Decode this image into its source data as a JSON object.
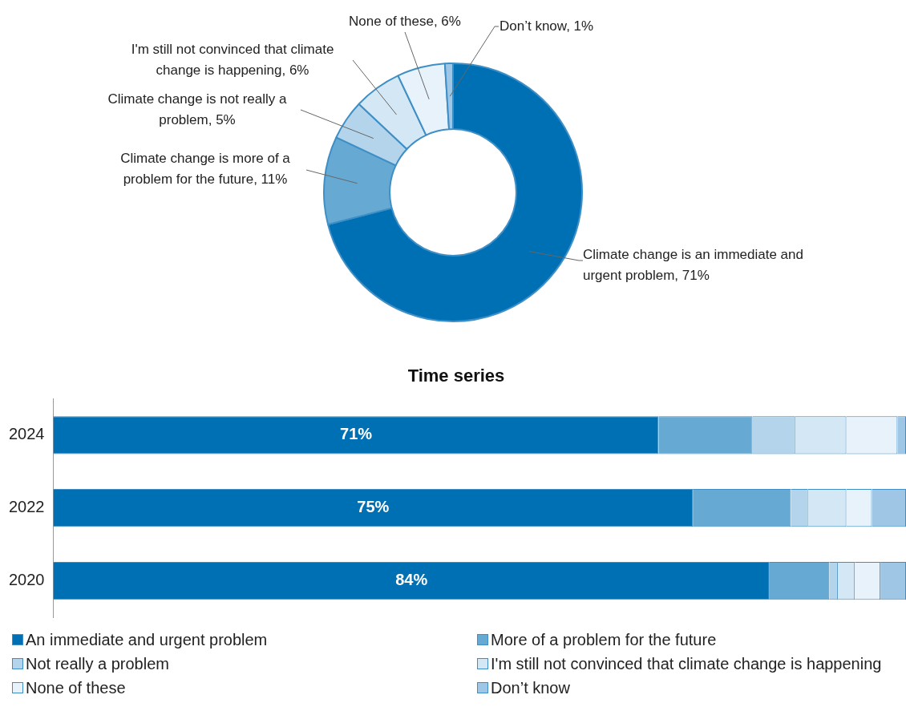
{
  "chart_data": [
    {
      "type": "donut",
      "categories": [
        "Climate change is an immediate and urgent problem",
        "Climate change is more of a problem for the future",
        "Climate change is not really a problem",
        "I'm still not convinced that climate change is happening",
        "None of these",
        "Don’t know"
      ],
      "values": [
        71,
        11,
        5,
        6,
        6,
        1
      ],
      "value_labels": [
        "71%",
        "11%",
        "5%",
        "6%",
        "6%",
        "1%"
      ],
      "colors": [
        "#0070b5",
        "#66aad4",
        "#b3d4ea",
        "#d4e7f5",
        "#e8f2fa",
        "#9fc7e5"
      ]
    },
    {
      "type": "bar",
      "title": "Time series",
      "orientation": "horizontal",
      "stacked": true,
      "legend": "bottom",
      "categories": [
        "2024",
        "2022",
        "2020"
      ],
      "xlim": [
        0,
        100
      ],
      "series": [
        {
          "name": "An immediate and urgent problem",
          "color": "#0070b5",
          "values": [
            71,
            75,
            84
          ],
          "value_labels": [
            "71%",
            "75%",
            "84%"
          ]
        },
        {
          "name": "More of a problem for the future",
          "color": "#66aad4",
          "values": [
            11,
            11.5,
            7
          ]
        },
        {
          "name": "Not really a problem",
          "color": "#b3d4ea",
          "values": [
            5,
            2,
            1
          ]
        },
        {
          "name": "I'm still not convinced that climate change is happening",
          "color": "#d4e7f5",
          "values": [
            6,
            4.5,
            2
          ]
        },
        {
          "name": "None of these",
          "color": "#e8f2fa",
          "values": [
            6,
            3,
            3
          ]
        },
        {
          "name": "Don’t know",
          "color": "#9fc7e5",
          "values": [
            1,
            4,
            3
          ]
        }
      ]
    }
  ]
}
